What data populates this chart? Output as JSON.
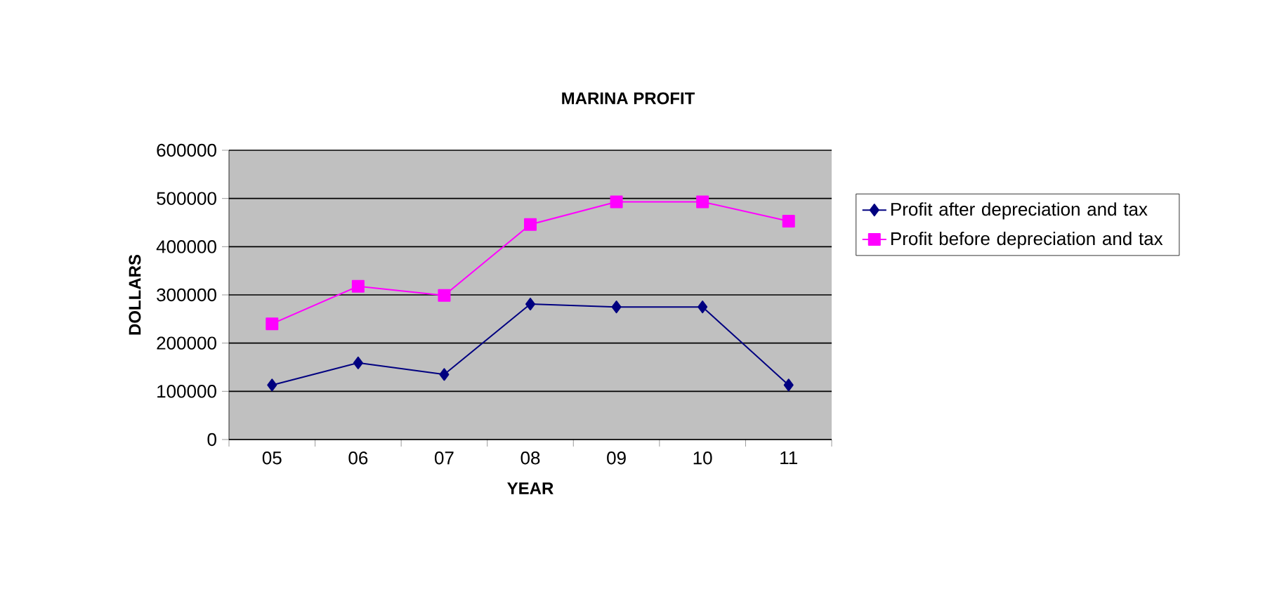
{
  "chart_data": {
    "type": "line",
    "title": "MARINA PROFIT",
    "xlabel": "YEAR",
    "ylabel": "DOLLARS",
    "categories": [
      "05",
      "06",
      "07",
      "08",
      "09",
      "10",
      "11"
    ],
    "series": [
      {
        "name": "Profit after depreciation and tax",
        "color": "#000080",
        "marker": "diamond",
        "values": [
          113000,
          159000,
          135000,
          281000,
          275000,
          275000,
          113000
        ]
      },
      {
        "name": "Profit before depreciation and tax",
        "color": "#ff00ff",
        "marker": "square",
        "values": [
          240000,
          318000,
          299000,
          446000,
          493000,
          493000,
          453000
        ]
      }
    ],
    "ylim": [
      0,
      600000
    ],
    "yticks": [
      0,
      100000,
      200000,
      300000,
      400000,
      500000,
      600000
    ],
    "grid": "y",
    "legend": "right",
    "line_style": "solid"
  }
}
